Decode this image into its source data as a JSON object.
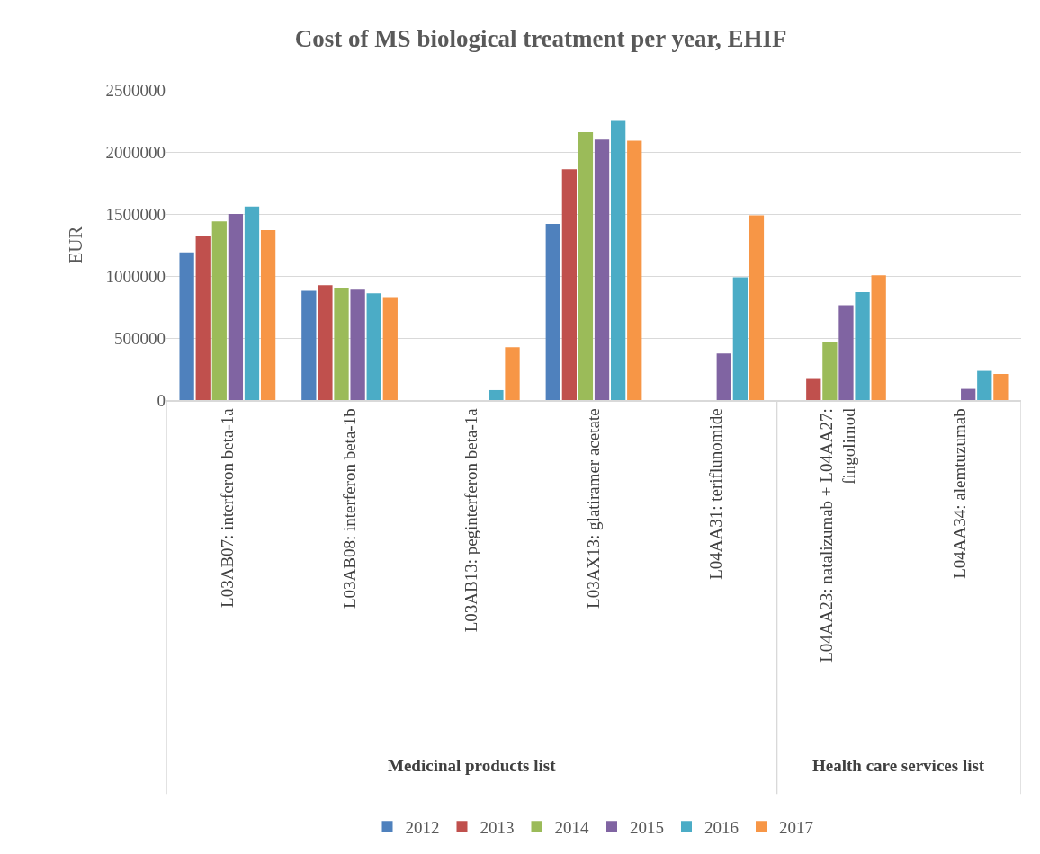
{
  "chart_data": {
    "type": "bar",
    "title": "Cost of MS biological treatment per year, EHIF",
    "ylabel": "EUR",
    "categories": [
      "L03AB07: interferon beta-1a",
      "L03AB08: interferon beta-1b",
      "L03AB13: peginterferon beta-1a",
      "L03AX13: glatiramer acetate",
      "L04AA31: teriflunomide",
      "L04AA23: natalizumab + L04AA27: fingolimod",
      "L04AA34: alemtuzumab"
    ],
    "series": [
      {
        "name": "2012",
        "color": "#4f81bd",
        "values": [
          1190000,
          880000,
          null,
          1420000,
          null,
          null,
          null
        ]
      },
      {
        "name": "2013",
        "color": "#c0504d",
        "values": [
          1320000,
          925000,
          null,
          1860000,
          null,
          170000,
          null
        ]
      },
      {
        "name": "2014",
        "color": "#9bbb59",
        "values": [
          1440000,
          905000,
          null,
          2160000,
          null,
          470000,
          null
        ]
      },
      {
        "name": "2015",
        "color": "#8064a2",
        "values": [
          1500000,
          890000,
          null,
          2100000,
          375000,
          765000,
          90000
        ]
      },
      {
        "name": "2016",
        "color": "#4bacc6",
        "values": [
          1560000,
          860000,
          80000,
          2250000,
          990000,
          870000,
          235000
        ]
      },
      {
        "name": "2017",
        "color": "#f79646",
        "values": [
          1370000,
          830000,
          425000,
          2090000,
          1490000,
          1005000,
          210000
        ]
      }
    ],
    "annotations": [
      "Medicinal products list",
      "Health care services list"
    ],
    "ylim": [
      0,
      2500000
    ],
    "yticks": [
      0,
      500000,
      1000000,
      1500000,
      2000000,
      2500000
    ],
    "grid": "y",
    "legend": "bottom"
  }
}
